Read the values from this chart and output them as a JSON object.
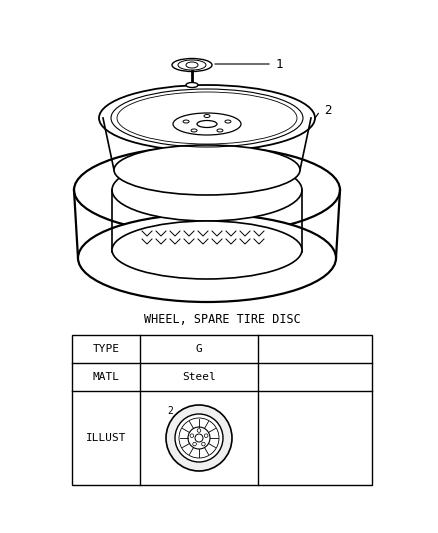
{
  "title": "WHEEL, SPARE TIRE DISC",
  "background_color": "#ffffff",
  "table": {
    "type_val": "G",
    "matl_val": "Steel",
    "illust_label": "2"
  },
  "font_family": "monospace"
}
